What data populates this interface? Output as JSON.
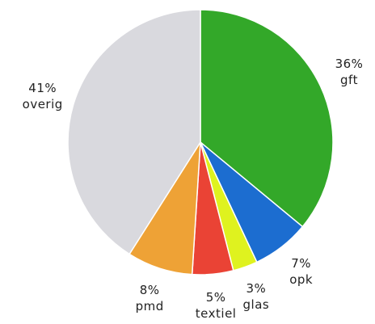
{
  "chart_data": {
    "type": "pie",
    "categories": [
      "gft",
      "opk",
      "glas",
      "textiel",
      "pmd",
      "overig"
    ],
    "values": [
      36,
      7,
      3,
      5,
      8,
      41
    ],
    "value_labels": [
      "36%",
      "7%",
      "3%",
      "5%",
      "8%",
      "41%"
    ],
    "colors": [
      "#33a829",
      "#1c6dd0",
      "#dff21f",
      "#ea4335",
      "#eea236",
      "#d9d9de"
    ]
  }
}
